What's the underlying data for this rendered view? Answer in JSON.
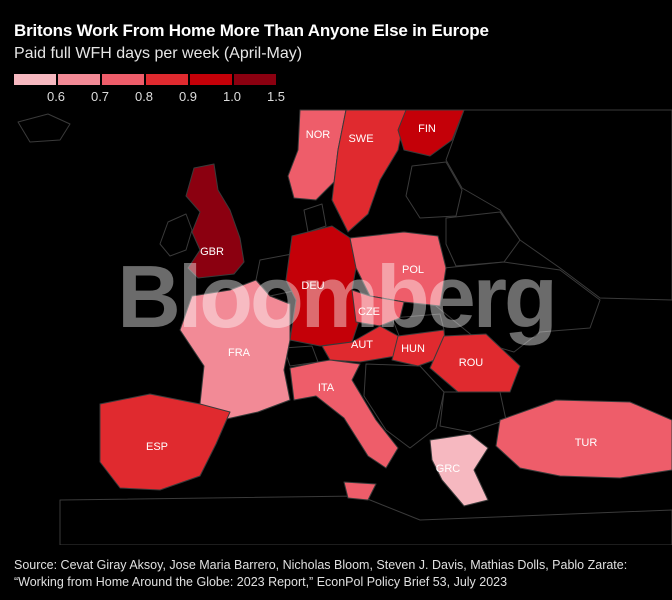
{
  "title": "Britons Work From Home More Than Anyone Else in Europe",
  "subtitle": "Paid full WFH days per week (April-May)",
  "legend": {
    "colors": [
      "#f6b8c0",
      "#f28a96",
      "#ee5d6a",
      "#e02a2f",
      "#c40008",
      "#8b0010"
    ],
    "ticks": [
      "0.6",
      "0.7",
      "0.8",
      "0.9",
      "1.0",
      "1.5"
    ]
  },
  "countries": [
    {
      "code": "GBR",
      "color": "#8b0010"
    },
    {
      "code": "NOR",
      "color": "#ee5d6a"
    },
    {
      "code": "SWE",
      "color": "#e02a2f"
    },
    {
      "code": "FIN",
      "color": "#c40008"
    },
    {
      "code": "DEU",
      "color": "#c40008"
    },
    {
      "code": "POL",
      "color": "#ee5d6a"
    },
    {
      "code": "CZE",
      "color": "#ee5d6a"
    },
    {
      "code": "AUT",
      "color": "#e02a2f"
    },
    {
      "code": "HUN",
      "color": "#e02a2f"
    },
    {
      "code": "ROU",
      "color": "#e02a2f"
    },
    {
      "code": "FRA",
      "color": "#f28a96"
    },
    {
      "code": "ITA",
      "color": "#ee5d6a"
    },
    {
      "code": "ESP",
      "color": "#e02a2f"
    },
    {
      "code": "GRC",
      "color": "#f6b8c0"
    },
    {
      "code": "TUR",
      "color": "#ee5d6a"
    }
  ],
  "watermark": "Bloomberg",
  "source": "Source: Cevat Giray Aksoy, Jose Maria Barrero, Nicholas Bloom, Steven J. Davis, Mathias Dolls, Pablo Zarate: “Working from Home Around the Globe: 2023 Report,” EconPol Policy Brief 53, July 2023"
}
